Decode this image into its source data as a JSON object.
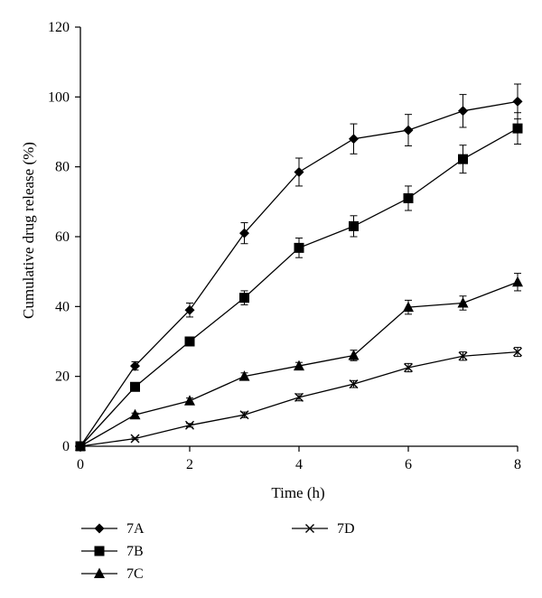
{
  "chart_data": {
    "type": "line",
    "title": "",
    "xlabel": "Time (h)",
    "ylabel": "Cumulative drug release (%)",
    "xlim": [
      0,
      8
    ],
    "ylim": [
      0,
      120
    ],
    "xticks": [
      0,
      2,
      4,
      6,
      8
    ],
    "yticks": [
      0,
      20,
      40,
      60,
      80,
      100,
      120
    ],
    "grid": false,
    "legend_position": "bottom",
    "x": [
      0,
      1,
      2,
      3,
      4,
      5,
      6,
      7,
      8
    ],
    "series": [
      {
        "name": "7A",
        "marker": "diamond",
        "values": [
          0,
          23,
          39,
          61,
          78.5,
          88,
          90.5,
          96,
          98.7
        ],
        "errors": [
          0,
          1.2,
          2,
          3,
          4,
          4.3,
          4.5,
          4.7,
          5
        ]
      },
      {
        "name": "7B",
        "marker": "square",
        "values": [
          0,
          17,
          30,
          42.5,
          56.8,
          63,
          71,
          82.2,
          91
        ],
        "errors": [
          0,
          1,
          1,
          2,
          2.8,
          3,
          3.5,
          4,
          4.5
        ]
      },
      {
        "name": "7C",
        "marker": "triangle",
        "values": [
          0,
          9,
          13,
          20,
          23,
          26,
          39.8,
          41,
          47
        ],
        "errors": [
          0,
          0.5,
          0.8,
          1,
          1,
          1.5,
          2,
          2,
          2.5
        ]
      },
      {
        "name": "7D",
        "marker": "x",
        "values": [
          0,
          2.2,
          6,
          9,
          14,
          17.8,
          22.5,
          25.8,
          27
        ],
        "errors": [
          0,
          0.3,
          0.5,
          0.8,
          1,
          1,
          1.2,
          1.2,
          1.3
        ]
      }
    ]
  }
}
